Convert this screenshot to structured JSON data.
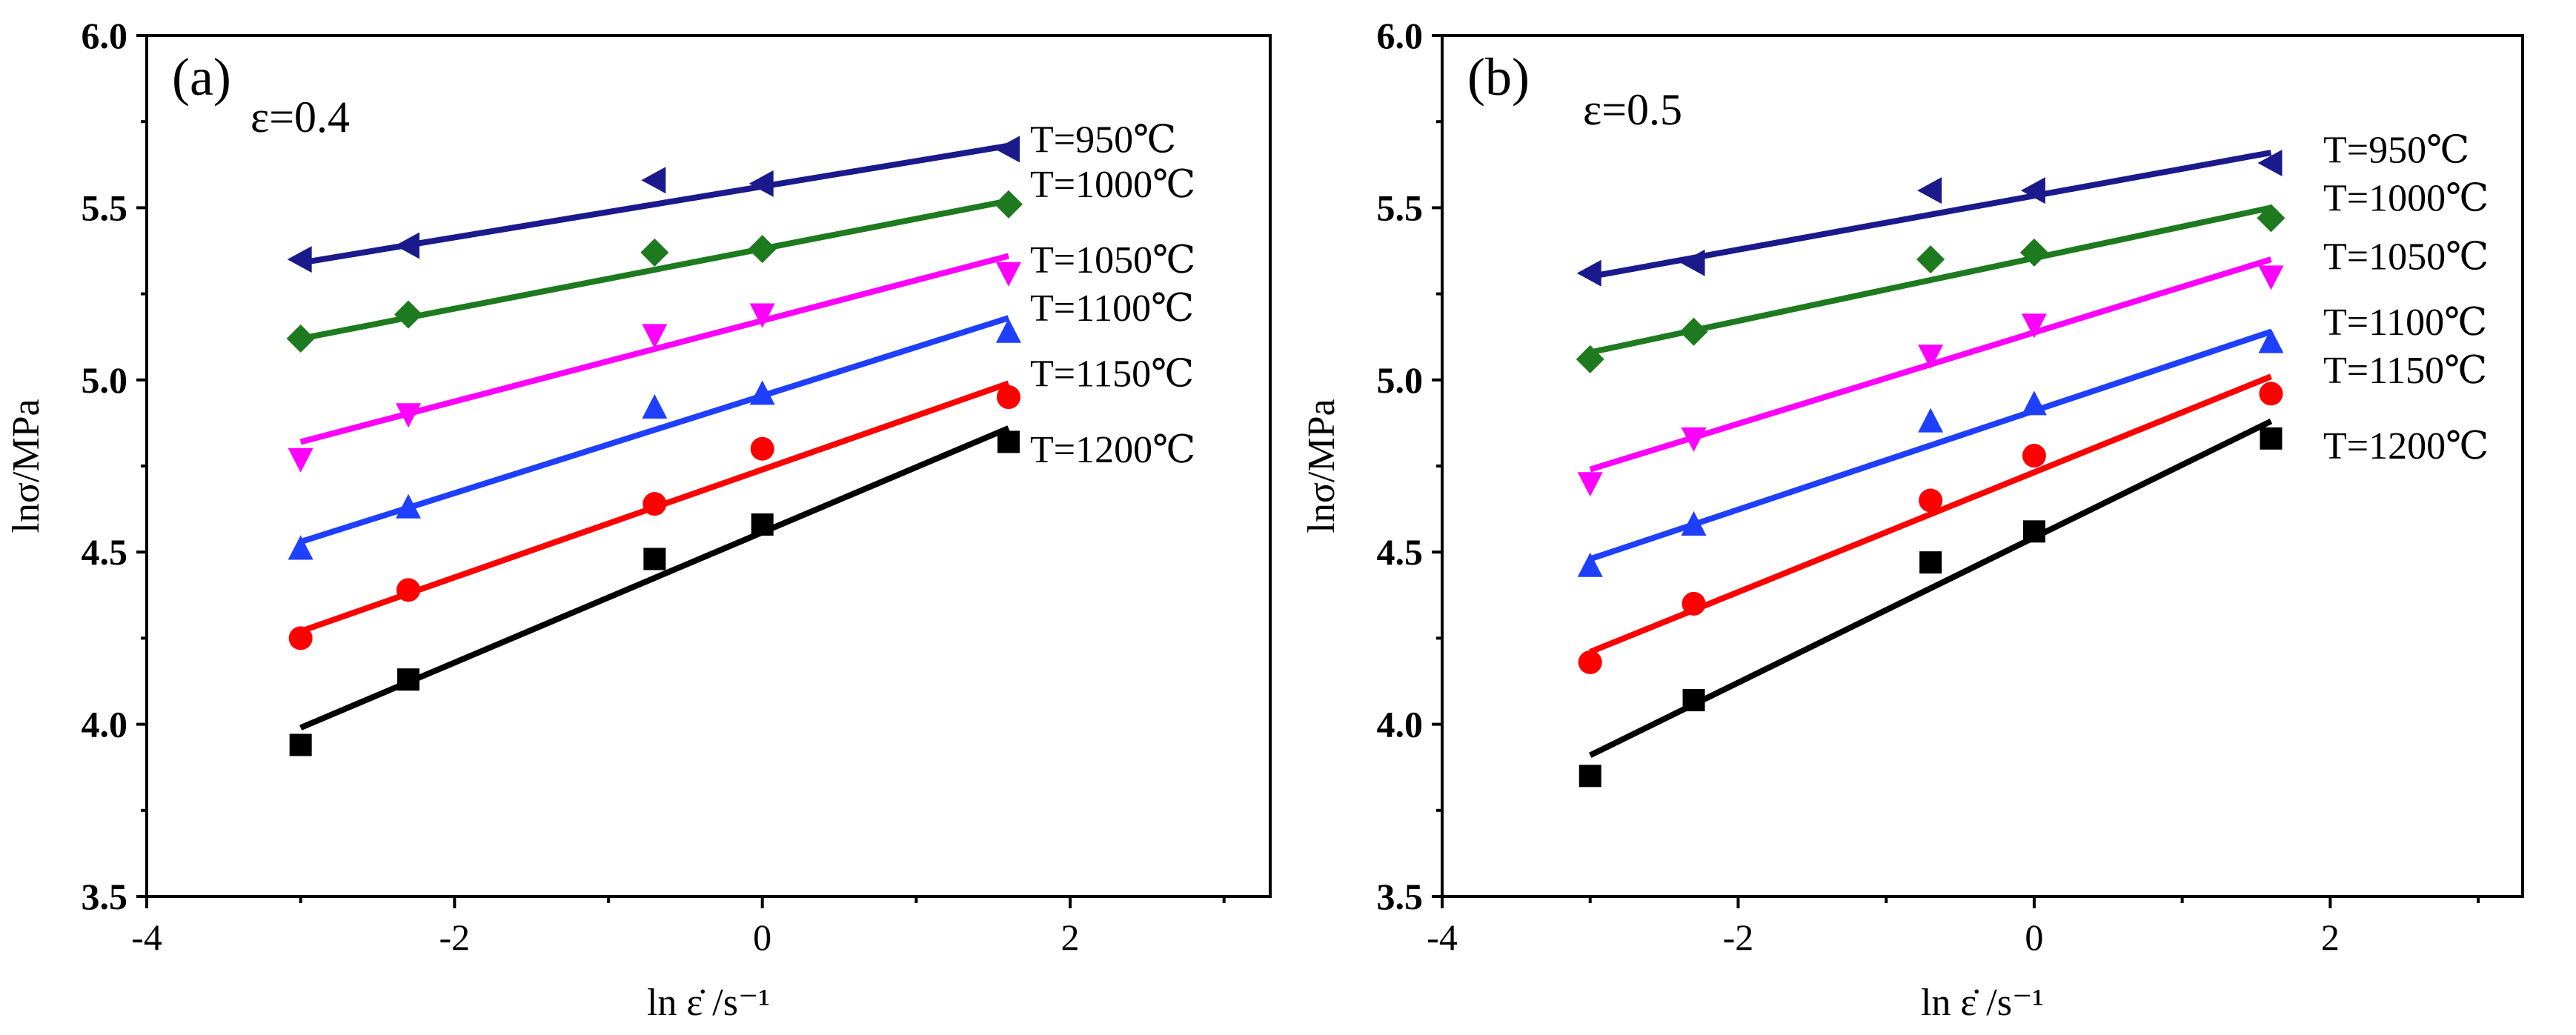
{
  "chart_data": [
    {
      "type": "scatter",
      "panel_label": "(a)",
      "strain_label": "ε=0.4",
      "xlabel": "ln ε̇ /s⁻¹",
      "ylabel": "lnσ/MPa",
      "xlim": [
        -4,
        3.3
      ],
      "ylim": [
        3.5,
        6.0
      ],
      "x_ticks": [
        -4,
        -2,
        0,
        2
      ],
      "x_tick_labels": [
        "-4",
        "-2",
        "0",
        "2"
      ],
      "y_ticks": [
        3.5,
        4.0,
        4.5,
        5.0,
        5.5,
        6.0
      ],
      "y_tick_labels": [
        "3.5",
        "4.0",
        "4.5",
        "5.0",
        "5.5",
        "6.0"
      ],
      "x": [
        -3.0,
        -2.3,
        -0.7,
        0.0,
        1.6
      ],
      "series": [
        {
          "name": "T=950℃",
          "marker": "triangle-left",
          "color": "#1a1a8c",
          "values": [
            5.35,
            5.39,
            5.58,
            5.57,
            5.67
          ],
          "fit": [
            5.34,
            5.68
          ]
        },
        {
          "name": "T=1000℃",
          "marker": "diamond",
          "color": "#1e7a1e",
          "values": [
            5.12,
            5.19,
            5.37,
            5.38,
            5.51
          ],
          "fit": [
            5.12,
            5.52
          ]
        },
        {
          "name": "T=1050℃",
          "marker": "triangle-down",
          "color": "#ff00ff",
          "values": [
            4.77,
            4.9,
            5.13,
            5.19,
            5.31
          ],
          "fit": [
            4.82,
            5.36
          ]
        },
        {
          "name": "T=1100℃",
          "marker": "triangle-up",
          "color": "#1f3fff",
          "values": [
            4.51,
            4.63,
            4.92,
            4.96,
            5.14
          ],
          "fit": [
            4.53,
            5.18
          ]
        },
        {
          "name": "T=1150℃",
          "marker": "circle",
          "color": "#ff0000",
          "values": [
            4.25,
            4.39,
            4.64,
            4.8,
            4.95
          ],
          "fit": [
            4.27,
            4.99
          ]
        },
        {
          "name": "T=1200℃",
          "marker": "square",
          "color": "#000000",
          "values": [
            3.94,
            4.13,
            4.48,
            4.58,
            4.82
          ],
          "fit": [
            3.99,
            4.86
          ]
        }
      ],
      "legend_y": [
        5.7,
        5.57,
        5.35,
        5.21,
        5.02,
        4.8
      ]
    },
    {
      "type": "scatter",
      "panel_label": "(b)",
      "strain_label": "ε=0.5",
      "xlabel": "ln ε̇ /s⁻¹",
      "ylabel": "lnσ/MPa",
      "xlim": [
        -4,
        3.3
      ],
      "ylim": [
        3.5,
        6.0
      ],
      "x_ticks": [
        -4,
        -2,
        0,
        2
      ],
      "x_tick_labels": [
        "-4",
        "-2",
        "0",
        "2"
      ],
      "y_ticks": [
        3.5,
        4.0,
        4.5,
        5.0,
        5.5,
        6.0
      ],
      "y_tick_labels": [
        "3.5",
        "4.0",
        "4.5",
        "5.0",
        "5.5",
        "6.0"
      ],
      "x": [
        -3.0,
        -2.3,
        -0.7,
        0.0,
        1.6
      ],
      "series": [
        {
          "name": "T=950℃",
          "marker": "triangle-left",
          "color": "#1a1a8c",
          "values": [
            5.31,
            5.34,
            5.55,
            5.55,
            5.63
          ],
          "fit": [
            5.3,
            5.66
          ]
        },
        {
          "name": "T=1000℃",
          "marker": "diamond",
          "color": "#1e7a1e",
          "values": [
            5.06,
            5.14,
            5.35,
            5.37,
            5.47
          ],
          "fit": [
            5.08,
            5.5
          ]
        },
        {
          "name": "T=1050℃",
          "marker": "triangle-down",
          "color": "#ff00ff",
          "values": [
            4.7,
            4.83,
            5.07,
            5.16,
            5.3
          ],
          "fit": [
            4.74,
            5.35
          ]
        },
        {
          "name": "T=1100℃",
          "marker": "triangle-up",
          "color": "#1f3fff",
          "values": [
            4.46,
            4.58,
            4.88,
            4.93,
            5.11
          ],
          "fit": [
            4.48,
            5.14
          ]
        },
        {
          "name": "T=1150℃",
          "marker": "circle",
          "color": "#ff0000",
          "values": [
            4.18,
            4.35,
            4.65,
            4.78,
            4.96
          ],
          "fit": [
            4.21,
            5.01
          ]
        },
        {
          "name": "T=1200℃",
          "marker": "square",
          "color": "#000000",
          "values": [
            3.85,
            4.07,
            4.47,
            4.56,
            4.83
          ],
          "fit": [
            3.91,
            4.88
          ]
        }
      ],
      "legend_y": [
        5.67,
        5.53,
        5.36,
        5.17,
        5.03,
        4.81
      ]
    }
  ]
}
